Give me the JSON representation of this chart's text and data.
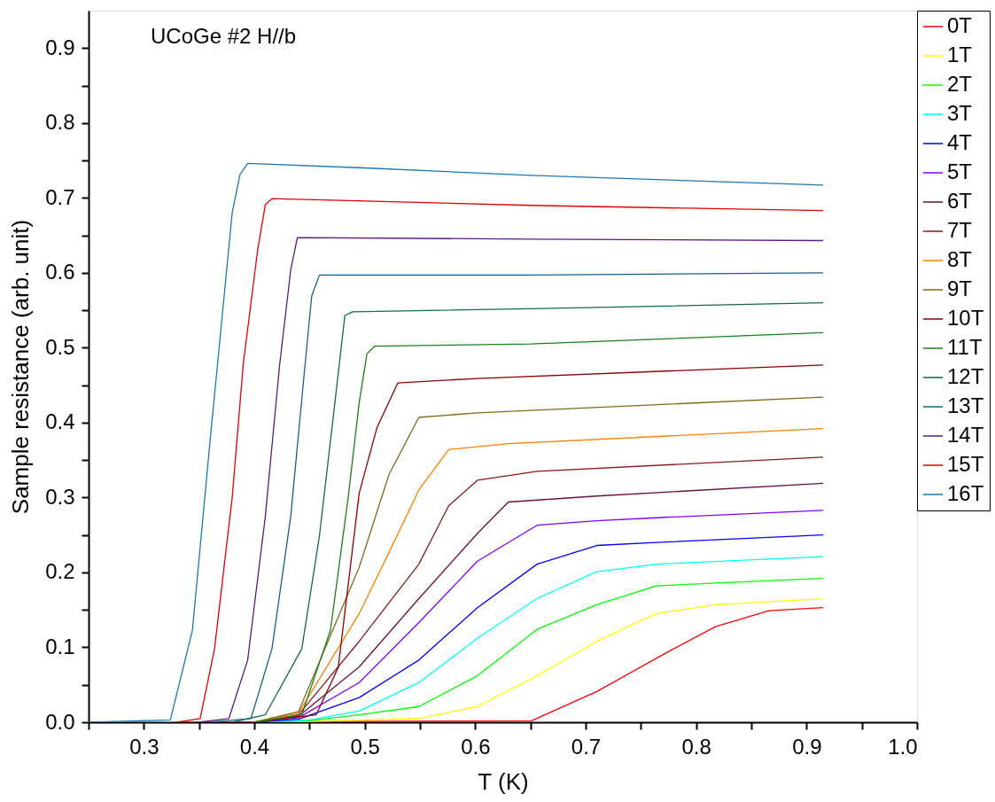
{
  "chart_data": {
    "type": "line",
    "xlabel": "T (K)",
    "ylabel": "Sample resistance (arb. unit)",
    "annotations": [
      "UCoGe  #2   H//b"
    ],
    "xlim": [
      0.25,
      1.0
    ],
    "ylim": [
      0,
      0.95
    ],
    "xticks": [
      {
        "value": 0.25,
        "label": null
      },
      0.3,
      {
        "value": 0.35,
        "label": null
      },
      0.4,
      {
        "value": 0.45,
        "label": null
      },
      0.5,
      {
        "value": 0.55,
        "label": null
      },
      0.6,
      {
        "value": 0.65,
        "label": null
      },
      0.7,
      {
        "value": 0.75,
        "label": null
      },
      0.8,
      {
        "value": 0.85,
        "label": null
      },
      0.9,
      {
        "value": 0.95,
        "label": null
      },
      {
        "value": 1.0,
        "label": "1.0"
      }
    ],
    "yticks": [
      {
        "value": 0,
        "label": "0.0"
      },
      {
        "value": 0.05,
        "label": null
      },
      0.1,
      {
        "value": 0.15,
        "label": null
      },
      0.2,
      {
        "value": 0.25,
        "label": null
      },
      0.3,
      {
        "value": 0.35,
        "label": null
      },
      0.4,
      {
        "value": 0.45,
        "label": null
      },
      0.5,
      {
        "value": 0.55,
        "label": null
      },
      0.6,
      {
        "value": 0.65,
        "label": null
      },
      0.7,
      {
        "value": 0.75,
        "label": null
      },
      0.8,
      {
        "value": 0.85,
        "label": null
      },
      0.9
    ],
    "grid": false,
    "legend": "right",
    "marker": "none",
    "line_style": "solid",
    "series": [
      {
        "name": "0T",
        "color": "#ff0000",
        "x": [
          0.33,
          0.651,
          0.71,
          0.777,
          0.818,
          0.866,
          0.915
        ],
        "values": [
          0,
          0.002,
          0.041,
          0.096,
          0.128,
          0.149,
          0.153
        ]
      },
      {
        "name": "1T",
        "color": "#ffff00",
        "x": [
          0.4,
          0.45,
          0.549,
          0.602,
          0.656,
          0.71,
          0.764,
          0.818,
          0.915
        ],
        "values": [
          0,
          0.001,
          0.005,
          0.021,
          0.062,
          0.108,
          0.145,
          0.157,
          0.165
        ]
      },
      {
        "name": "2T",
        "color": "#00ff00",
        "x": [
          0.4,
          0.45,
          0.495,
          0.549,
          0.602,
          0.656,
          0.71,
          0.764,
          0.818,
          0.915
        ],
        "values": [
          0,
          0.002,
          0.01,
          0.021,
          0.062,
          0.124,
          0.157,
          0.182,
          0.186,
          0.192
        ]
      },
      {
        "name": "3T",
        "color": "#00ffff",
        "x": [
          0.4,
          0.45,
          0.495,
          0.549,
          0.602,
          0.656,
          0.71,
          0.764,
          0.915
        ],
        "values": [
          0,
          0.003,
          0.015,
          0.053,
          0.112,
          0.165,
          0.201,
          0.211,
          0.221
        ]
      },
      {
        "name": "4T",
        "color": "#0000ff",
        "x": [
          0.4,
          0.44,
          0.495,
          0.549,
          0.602,
          0.656,
          0.71,
          0.764,
          0.915
        ],
        "values": [
          0,
          0.004,
          0.033,
          0.083,
          0.153,
          0.211,
          0.236,
          0.24,
          0.25
        ]
      },
      {
        "name": "5T",
        "color": "#8000ff",
        "x": [
          0.4,
          0.44,
          0.495,
          0.549,
          0.602,
          0.656,
          0.71,
          0.764,
          0.915
        ],
        "values": [
          0,
          0.006,
          0.053,
          0.133,
          0.215,
          0.263,
          0.269,
          0.273,
          0.283
        ]
      },
      {
        "name": "6T",
        "color": "#6b0f3f",
        "x": [
          0.4,
          0.44,
          0.495,
          0.549,
          0.602,
          0.63,
          0.71,
          0.915
        ],
        "values": [
          0,
          0.008,
          0.074,
          0.165,
          0.252,
          0.294,
          0.302,
          0.319
        ]
      },
      {
        "name": "7T",
        "color": "#8b1a1a",
        "x": [
          0.4,
          0.44,
          0.495,
          0.549,
          0.576,
          0.602,
          0.656,
          0.915
        ],
        "values": [
          0,
          0.01,
          0.108,
          0.211,
          0.289,
          0.323,
          0.335,
          0.354
        ]
      },
      {
        "name": "8T",
        "color": "#ff8000",
        "x": [
          0.4,
          0.44,
          0.495,
          0.522,
          0.549,
          0.576,
          0.63,
          0.915
        ],
        "values": [
          0,
          0.012,
          0.145,
          0.227,
          0.31,
          0.364,
          0.372,
          0.392
        ]
      },
      {
        "name": "9T",
        "color": "#7f6a1a",
        "x": [
          0.4,
          0.44,
          0.495,
          0.522,
          0.549,
          0.602,
          0.915
        ],
        "values": [
          0,
          0.014,
          0.207,
          0.331,
          0.407,
          0.413,
          0.434
        ]
      },
      {
        "name": "10T",
        "color": "#8b0000",
        "x": [
          0.4,
          0.456,
          0.476,
          0.495,
          0.511,
          0.53,
          0.602,
          0.915
        ],
        "values": [
          0,
          0.01,
          0.073,
          0.306,
          0.393,
          0.453,
          0.459,
          0.477
        ]
      },
      {
        "name": "11T",
        "color": "#1a801a",
        "x": [
          0.4,
          0.443,
          0.469,
          0.485,
          0.495,
          0.502,
          0.509,
          0.65,
          0.915
        ],
        "values": [
          0,
          0.01,
          0.123,
          0.3,
          0.427,
          0.492,
          0.502,
          0.505,
          0.52
        ]
      },
      {
        "name": "12T",
        "color": "#106b50",
        "x": [
          0.38,
          0.41,
          0.443,
          0.459,
          0.473,
          0.482,
          0.489,
          0.65,
          0.915
        ],
        "values": [
          0,
          0.01,
          0.098,
          0.249,
          0.427,
          0.543,
          0.548,
          0.552,
          0.56
        ]
      },
      {
        "name": "13T",
        "color": "#1a5f8a",
        "x": [
          0.36,
          0.397,
          0.416,
          0.433,
          0.446,
          0.452,
          0.459,
          0.65,
          0.915
        ],
        "values": [
          0,
          0.005,
          0.098,
          0.275,
          0.478,
          0.569,
          0.597,
          0.597,
          0.6
        ]
      },
      {
        "name": "14T",
        "color": "#5a1a80",
        "x": [
          0.35,
          0.377,
          0.394,
          0.41,
          0.423,
          0.433,
          0.439,
          0.65,
          0.915
        ],
        "values": [
          0,
          0.005,
          0.083,
          0.275,
          0.478,
          0.604,
          0.647,
          0.645,
          0.643
        ]
      },
      {
        "name": "15T",
        "color": "#e00000",
        "x": [
          0.33,
          0.351,
          0.364,
          0.38,
          0.39,
          0.403,
          0.41,
          0.416,
          0.65,
          0.915
        ],
        "values": [
          0,
          0.005,
          0.098,
          0.3,
          0.478,
          0.63,
          0.691,
          0.699,
          0.69,
          0.683
        ]
      },
      {
        "name": "16T",
        "color": "#1a78b4",
        "x": [
          0.25,
          0.324,
          0.344,
          0.36,
          0.37,
          0.38,
          0.387,
          0.394,
          0.5,
          0.65,
          0.915
        ],
        "values": [
          0,
          0.003,
          0.123,
          0.376,
          0.528,
          0.68,
          0.731,
          0.746,
          0.74,
          0.73,
          0.717
        ]
      }
    ]
  }
}
